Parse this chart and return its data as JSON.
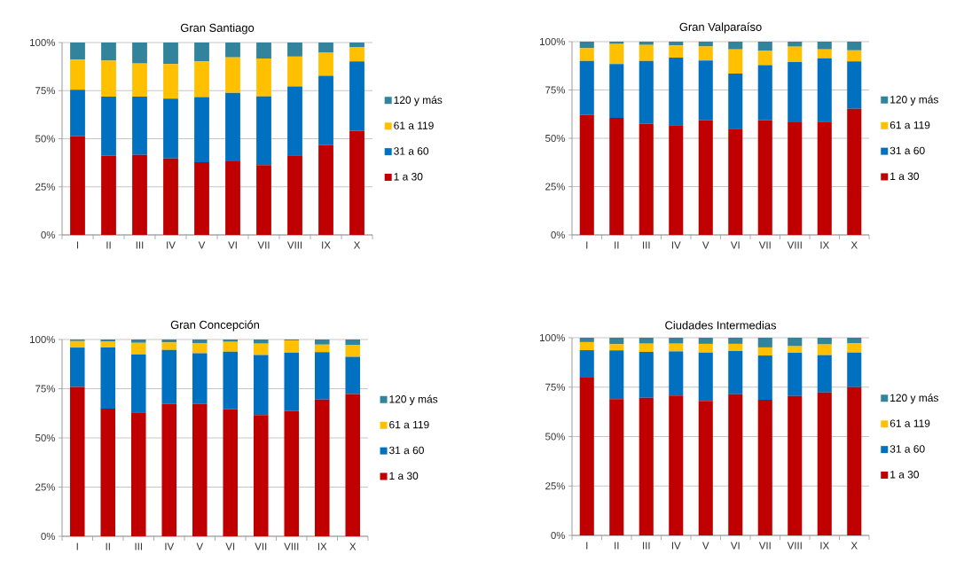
{
  "chart_data": [
    {
      "type": "bar",
      "stacked": true,
      "title": "Gran Santiago",
      "categories": [
        "I",
        "II",
        "III",
        "IV",
        "V",
        "VI",
        "VII",
        "VIII",
        "IX",
        "X"
      ],
      "series": [
        {
          "name": "1 a 30",
          "color": "#c00000",
          "values": [
            51.4,
            41.2,
            41.6,
            39.8,
            37.8,
            38.3,
            36.3,
            41.4,
            46.7,
            54.2
          ]
        },
        {
          "name": "31 a 60",
          "color": "#0070c0",
          "values": [
            24.1,
            30.7,
            30.3,
            31.1,
            33.9,
            35.6,
            35.7,
            35.8,
            36.0,
            36.0
          ]
        },
        {
          "name": "61 a 119",
          "color": "#ffc000",
          "values": [
            15.6,
            18.7,
            17.2,
            17.9,
            18.5,
            18.4,
            19.7,
            15.5,
            12.0,
            7.5
          ]
        },
        {
          "name": "120 y más",
          "color": "#31849b",
          "values": [
            8.9,
            9.4,
            10.9,
            11.2,
            9.8,
            7.7,
            8.3,
            7.3,
            5.3,
            2.3
          ]
        }
      ],
      "ylim": [
        0,
        100
      ],
      "yticks": [
        {
          "value": 0,
          "label": "0%"
        },
        {
          "value": 25,
          "label": "25%"
        },
        {
          "value": 50,
          "label": "50%"
        },
        {
          "value": 75,
          "label": "75%"
        },
        {
          "value": 100,
          "label": "100%"
        }
      ],
      "grid": "y",
      "legend": "right"
    },
    {
      "type": "bar",
      "stacked": true,
      "title": "Gran Valparaíso",
      "categories": [
        "I",
        "II",
        "III",
        "IV",
        "V",
        "VI",
        "VII",
        "VIII",
        "IX",
        "X"
      ],
      "series": [
        {
          "name": "1 a 30",
          "color": "#c00000",
          "values": [
            62.0,
            60.6,
            57.4,
            56.8,
            59.3,
            54.9,
            59.4,
            58.3,
            58.6,
            65.3
          ]
        },
        {
          "name": "31 a 60",
          "color": "#0070c0",
          "values": [
            28.0,
            27.8,
            32.6,
            34.9,
            31.0,
            28.6,
            28.4,
            31.1,
            32.8,
            24.5
          ]
        },
        {
          "name": "61 a 119",
          "color": "#ffc000",
          "values": [
            6.6,
            10.4,
            8.3,
            6.4,
            7.2,
            12.5,
            7.4,
            8.0,
            4.6,
            5.7
          ]
        },
        {
          "name": "120 y más",
          "color": "#31849b",
          "values": [
            3.4,
            1.2,
            1.7,
            1.9,
            2.5,
            4.0,
            4.8,
            2.6,
            4.0,
            4.5
          ]
        }
      ],
      "ylim": [
        0,
        100
      ],
      "yticks": [
        {
          "value": 0,
          "label": "0%"
        },
        {
          "value": 25,
          "label": "25%"
        },
        {
          "value": 50,
          "label": "50%"
        },
        {
          "value": 75,
          "label": "75%"
        },
        {
          "value": 100,
          "label": "100%"
        }
      ],
      "grid": "y",
      "legend": "right"
    },
    {
      "type": "bar",
      "stacked": true,
      "title": "Gran Concepción",
      "categories": [
        "I",
        "II",
        "III",
        "IV",
        "V",
        "VI",
        "VII",
        "VIII",
        "IX",
        "X"
      ],
      "series": [
        {
          "name": "1 a 30",
          "color": "#c00000",
          "values": [
            75.9,
            64.9,
            63.0,
            67.2,
            67.2,
            64.5,
            61.6,
            63.6,
            69.5,
            72.3
          ]
        },
        {
          "name": "31 a 60",
          "color": "#0070c0",
          "values": [
            20.0,
            31.0,
            29.5,
            27.5,
            25.8,
            29.3,
            30.5,
            29.8,
            24.1,
            18.9
          ]
        },
        {
          "name": "61 a 119",
          "color": "#ffc000",
          "values": [
            3.3,
            3.2,
            5.8,
            3.8,
            5.0,
            5.0,
            5.8,
            6.1,
            3.8,
            5.9
          ]
        },
        {
          "name": "120 y más",
          "color": "#31849b",
          "values": [
            0.8,
            0.9,
            1.7,
            1.5,
            2.0,
            1.2,
            2.1,
            0.5,
            2.6,
            2.9
          ]
        }
      ],
      "ylim": [
        0,
        100
      ],
      "yticks": [
        {
          "value": 0,
          "label": "0%"
        },
        {
          "value": 25,
          "label": "25%"
        },
        {
          "value": 50,
          "label": "50%"
        },
        {
          "value": 75,
          "label": "75%"
        },
        {
          "value": 100,
          "label": "100%"
        }
      ],
      "grid": "y",
      "legend": "right"
    },
    {
      "type": "bar",
      "stacked": true,
      "title": "Ciudades Intermedias",
      "categories": [
        "I",
        "II",
        "III",
        "IV",
        "V",
        "VI",
        "VII",
        "VIII",
        "IX",
        "X"
      ],
      "series": [
        {
          "name": "1 a 30",
          "color": "#c00000",
          "values": [
            79.8,
            69.0,
            69.6,
            70.7,
            68.1,
            71.4,
            68.6,
            70.5,
            72.3,
            75.0
          ]
        },
        {
          "name": "31 a 60",
          "color": "#0070c0",
          "values": [
            13.9,
            24.6,
            23.2,
            22.4,
            24.4,
            21.9,
            22.4,
            21.9,
            18.9,
            17.5
          ]
        },
        {
          "name": "61 a 119",
          "color": "#ffc000",
          "values": [
            4.1,
            3.1,
            4.2,
            3.9,
            4.4,
            3.6,
            4.1,
            3.3,
            5.4,
            4.8
          ]
        },
        {
          "name": "120 y más",
          "color": "#31849b",
          "values": [
            2.2,
            3.3,
            3.0,
            3.0,
            3.1,
            3.1,
            4.9,
            4.3,
            3.4,
            2.7
          ]
        }
      ],
      "ylim": [
        0,
        100
      ],
      "yticks": [
        {
          "value": 0,
          "label": "0%"
        },
        {
          "value": 25,
          "label": "25%"
        },
        {
          "value": 50,
          "label": "50%"
        },
        {
          "value": 75,
          "label": "75%"
        },
        {
          "value": 100,
          "label": "100%"
        }
      ],
      "grid": "y",
      "legend": "right"
    }
  ]
}
